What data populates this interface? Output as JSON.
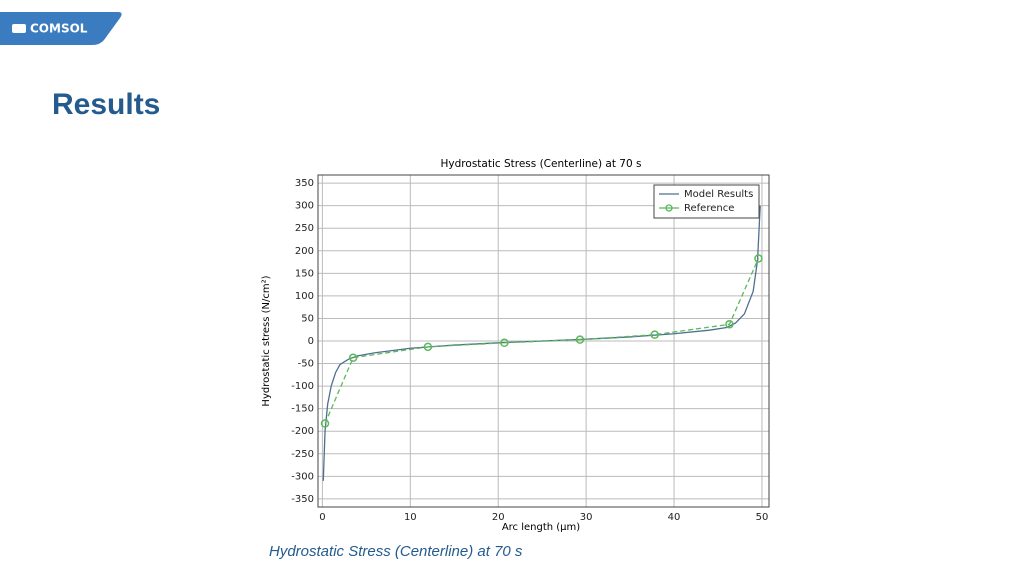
{
  "logo": "COMSOL",
  "heading": "Results",
  "caption": "Hydrostatic Stress (Centerline) at 70 s",
  "chart_data": {
    "type": "line",
    "title": "Hydrostatic Stress (Centerline) at 70 s",
    "x_label": "Arc length (µm)",
    "y_label": "Hydrostatic stress (N/cm²)",
    "xlim": [
      -0.5,
      50.8
    ],
    "ylim": [
      -368,
      368
    ],
    "xticks": [
      0,
      10,
      20,
      30,
      40,
      50
    ],
    "yticks": [
      -350,
      -300,
      -250,
      -200,
      -150,
      -100,
      -50,
      0,
      50,
      100,
      150,
      200,
      250,
      300,
      350
    ],
    "grid": true,
    "legend": "upper right",
    "series": [
      {
        "name": "Model Results",
        "color": "#4f6f8f",
        "style": "solid",
        "markers": false,
        "x": [
          0.1,
          0.3,
          0.6,
          1,
          1.5,
          2,
          3,
          4,
          6,
          10,
          15,
          20,
          25,
          30,
          35,
          40,
          44,
          46,
          47,
          48,
          49,
          49.5,
          49.8
        ],
        "values": [
          -310,
          -200,
          -140,
          -100,
          -70,
          -52,
          -40,
          -33,
          -26,
          -16,
          -9,
          -4,
          0,
          4,
          9,
          16,
          24,
          30,
          40,
          60,
          110,
          180,
          300
        ]
      },
      {
        "name": "Reference",
        "color": "#5cb85c",
        "style": "dashed",
        "markers": true,
        "x": [
          0.3,
          3.5,
          12,
          20.7,
          29.3,
          37.8,
          46.3,
          49.6
        ],
        "values": [
          -183,
          -37,
          -13,
          -4,
          3,
          14,
          37,
          183
        ]
      }
    ]
  }
}
